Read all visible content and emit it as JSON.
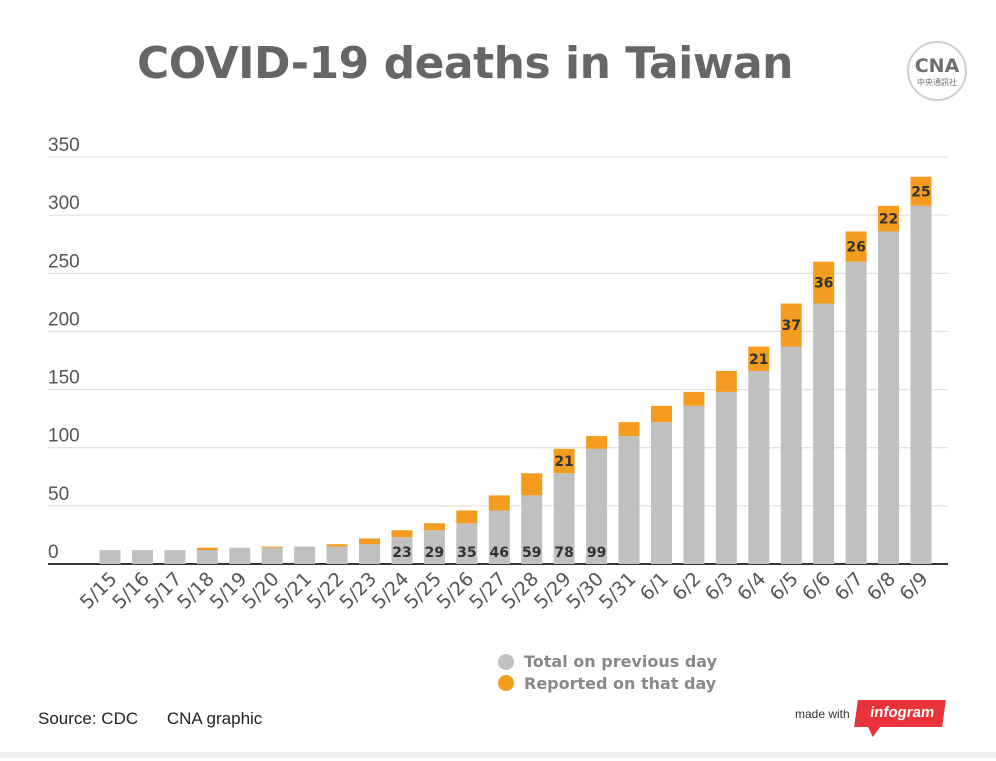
{
  "chart_data": {
    "type": "bar",
    "stacked": true,
    "title": "COVID-19 deaths in Taiwan",
    "categories": [
      "5/15",
      "5/16",
      "5/17",
      "5/18",
      "5/19",
      "5/20",
      "5/21",
      "5/22",
      "5/23",
      "5/24",
      "5/25",
      "5/26",
      "5/27",
      "5/28",
      "5/29",
      "5/30",
      "5/31",
      "6/1",
      "6/2",
      "6/3",
      "6/4",
      "6/5",
      "6/6",
      "6/7",
      "6/8",
      "6/9"
    ],
    "series": [
      {
        "name": "Total on previous day",
        "color": "#c0c0c0",
        "values": [
          12,
          12,
          12,
          12,
          14,
          14,
          15,
          15,
          17,
          23,
          29,
          35,
          46,
          59,
          78,
          99,
          110,
          122,
          136,
          148,
          166,
          187,
          224,
          260,
          286,
          308
        ],
        "labels": [
          "",
          "",
          "",
          "",
          "",
          "",
          "",
          "",
          "",
          "23",
          "29",
          "35",
          "46",
          "59",
          "78",
          "99",
          "",
          "",
          "",
          "",
          "",
          "",
          "",
          "",
          "",
          ""
        ]
      },
      {
        "name": "Reported on that day",
        "color": "#f39c1f",
        "values": [
          0,
          0,
          0,
          2,
          0,
          1,
          0,
          2,
          5,
          6,
          6,
          11,
          13,
          19,
          21,
          11,
          12,
          14,
          12,
          18,
          21,
          37,
          36,
          26,
          22,
          25
        ],
        "labels": [
          "",
          "",
          "",
          "",
          "",
          "",
          "",
          "",
          "",
          "",
          "",
          "",
          "",
          "",
          "21",
          "",
          "",
          "",
          "",
          "",
          "21",
          "37",
          "36",
          "26",
          "22",
          "25"
        ]
      }
    ],
    "ylim": [
      0,
      350
    ],
    "yticks": [
      0,
      50,
      100,
      150,
      200,
      250,
      300,
      350
    ],
    "grid": true,
    "legend_position": "bottom-right"
  },
  "logo": {
    "text": "CNA",
    "sub": "中央通訊社"
  },
  "footer": {
    "source": "Source: CDC",
    "credit": "CNA graphic",
    "made_with": "made with",
    "brand": "infogram"
  }
}
